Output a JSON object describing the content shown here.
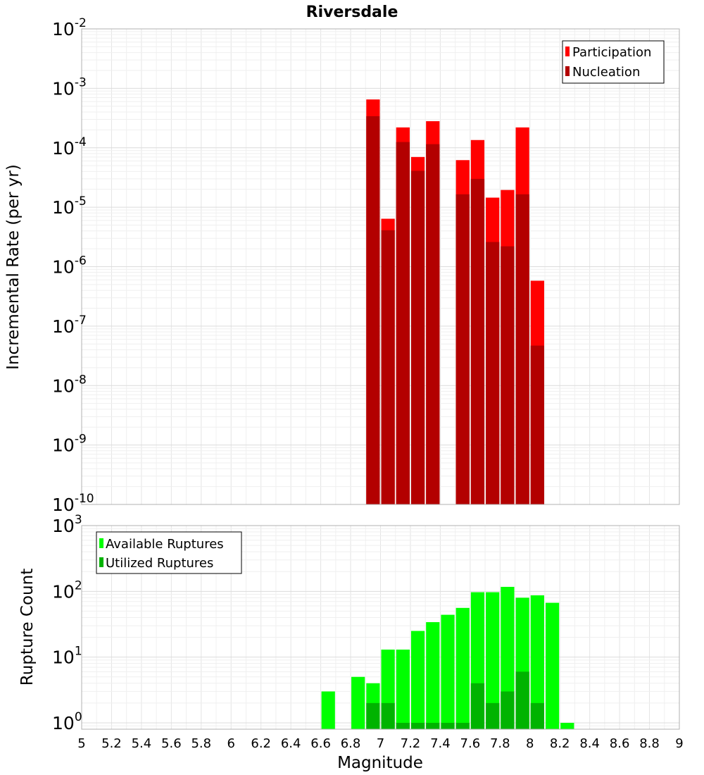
{
  "title": "Riversdale",
  "xlabel": "Magnitude",
  "chart_data": [
    {
      "type": "bar",
      "title": "Riversdale",
      "ylabel": "Incremental Rate (per yr)",
      "yscale": "log",
      "ylim": [
        1e-10,
        0.01
      ],
      "xlim": [
        5,
        9
      ],
      "bar_width": 0.1,
      "grid": true,
      "legend_position": "top-right",
      "series": [
        {
          "name": "Participation",
          "color": "#ff0000",
          "x": [
            6.95,
            7.05,
            7.15,
            7.25,
            7.35,
            7.55,
            7.65,
            7.75,
            7.85,
            7.95,
            8.05
          ],
          "values": [
            0.00065,
            6.4e-06,
            0.00022,
            7e-05,
            0.00028,
            6.2e-05,
            0.000135,
            1.45e-05,
            1.95e-05,
            0.00022,
            5.8e-07
          ]
        },
        {
          "name": "Nucleation",
          "color": "#b30000",
          "x": [
            6.95,
            7.05,
            7.15,
            7.25,
            7.35,
            7.55,
            7.65,
            7.75,
            7.85,
            7.95,
            8.05
          ],
          "values": [
            0.00034,
            4.1e-06,
            0.000125,
            4.1e-05,
            0.000115,
            1.65e-05,
            3e-05,
            2.6e-06,
            2.2e-06,
            1.65e-05,
            4.7e-08
          ]
        }
      ]
    },
    {
      "type": "bar",
      "xlabel": "Magnitude",
      "ylabel": "Rupture Count",
      "yscale": "log",
      "ylim": [
        0.8,
        1000
      ],
      "xlim": [
        5,
        9
      ],
      "bar_width": 0.1,
      "grid": true,
      "legend_position": "top-left",
      "xticks": [
        "5",
        "5.2",
        "5.4",
        "5.6",
        "5.8",
        "6",
        "6.2",
        "6.4",
        "6.6",
        "6.8",
        "7",
        "7.2",
        "7.4",
        "7.6",
        "7.8",
        "8",
        "8.2",
        "8.4",
        "8.6",
        "8.8",
        "9"
      ],
      "series": [
        {
          "name": "Available Ruptures",
          "color": "#00ff00",
          "x": [
            6.65,
            6.85,
            6.95,
            7.05,
            7.15,
            7.25,
            7.35,
            7.45,
            7.55,
            7.65,
            7.75,
            7.85,
            7.95,
            8.05,
            8.15,
            8.25
          ],
          "values": [
            3,
            5,
            4,
            13,
            13,
            25,
            34,
            44,
            56,
            97,
            97,
            117,
            80,
            87,
            67,
            1
          ]
        },
        {
          "name": "Utilized Ruptures",
          "color": "#00b300",
          "x": [
            6.95,
            7.05,
            7.15,
            7.25,
            7.35,
            7.45,
            7.55,
            7.65,
            7.75,
            7.85,
            7.95,
            8.05
          ],
          "values": [
            2,
            2,
            1,
            1,
            1,
            1,
            1,
            4,
            2,
            3,
            6,
            2
          ]
        }
      ]
    }
  ]
}
